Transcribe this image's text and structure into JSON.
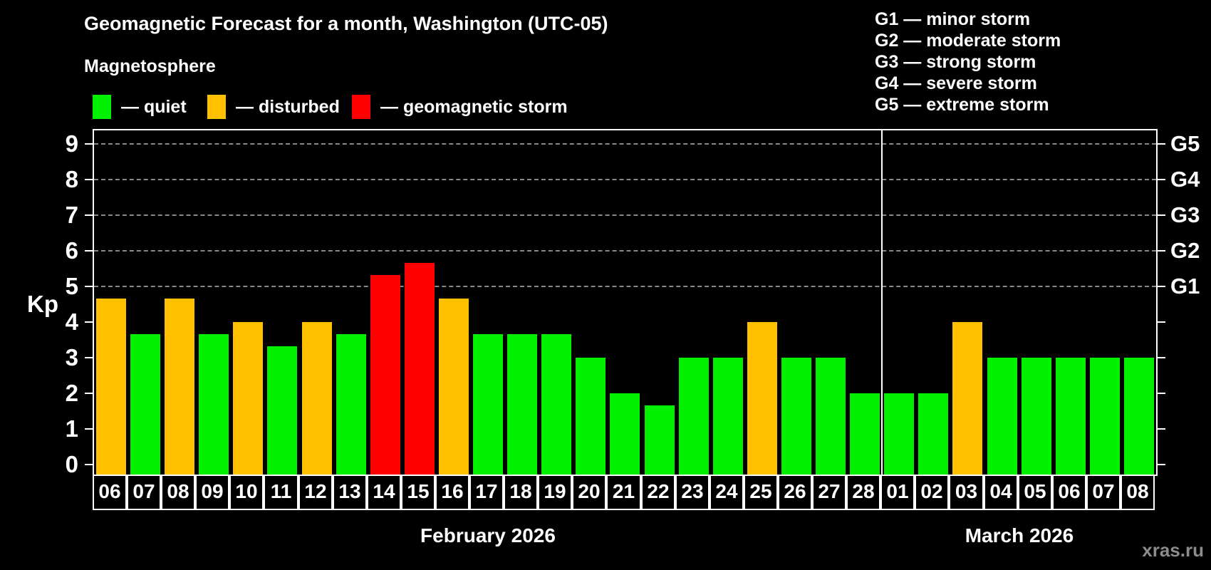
{
  "title": "Geomagnetic Forecast for a month, Washington (UTC-05)",
  "subtitle": "Magnetosphere",
  "watermark": "xras.ru",
  "colors": {
    "quiet": "#00f000",
    "disturbed": "#ffc000",
    "storm": "#ff0000",
    "grid": "#888888",
    "frame": "#ffffff",
    "text": "#ffffff",
    "watermark": "#8c8c8c",
    "background": "#000000"
  },
  "legend": {
    "items": [
      {
        "key": "quiet",
        "label": "— quiet"
      },
      {
        "key": "disturbed",
        "label": "— disturbed"
      },
      {
        "key": "storm",
        "label": "— geomagnetic storm"
      }
    ]
  },
  "storm_scale": [
    "G1 — minor storm",
    "G2 — moderate storm",
    "G3 — strong storm",
    "G4 — severe storm",
    "G5 — extreme storm"
  ],
  "y_axis": {
    "label": "Kp",
    "ticks": [
      0,
      1,
      2,
      3,
      4,
      5,
      6,
      7,
      8,
      9
    ]
  },
  "g_levels": [
    {
      "kp": 5,
      "code": "G1"
    },
    {
      "kp": 6,
      "code": "G2"
    },
    {
      "kp": 7,
      "code": "G3"
    },
    {
      "kp": 8,
      "code": "G4"
    },
    {
      "kp": 9,
      "code": "G5"
    }
  ],
  "chart_data": {
    "type": "bar",
    "title": "Geomagnetic Forecast for a month, Washington (UTC-05)",
    "xlabel": "",
    "ylabel": "Kp",
    "ylim": [
      0,
      9
    ],
    "grid": "dashed horizontal at Kp 5-9",
    "legend_position": "top-left",
    "months": [
      {
        "label": "February 2026",
        "points": [
          {
            "day": "06",
            "kp": 4.67,
            "status": "disturbed"
          },
          {
            "day": "07",
            "kp": 3.67,
            "status": "quiet"
          },
          {
            "day": "08",
            "kp": 4.67,
            "status": "disturbed"
          },
          {
            "day": "09",
            "kp": 3.67,
            "status": "quiet"
          },
          {
            "day": "10",
            "kp": 4.0,
            "status": "disturbed"
          },
          {
            "day": "11",
            "kp": 3.33,
            "status": "quiet"
          },
          {
            "day": "12",
            "kp": 4.0,
            "status": "disturbed"
          },
          {
            "day": "13",
            "kp": 3.67,
            "status": "quiet"
          },
          {
            "day": "14",
            "kp": 5.33,
            "status": "storm"
          },
          {
            "day": "15",
            "kp": 5.67,
            "status": "storm"
          },
          {
            "day": "16",
            "kp": 4.67,
            "status": "disturbed"
          },
          {
            "day": "17",
            "kp": 3.67,
            "status": "quiet"
          },
          {
            "day": "18",
            "kp": 3.67,
            "status": "quiet"
          },
          {
            "day": "19",
            "kp": 3.67,
            "status": "quiet"
          },
          {
            "day": "20",
            "kp": 3.0,
            "status": "quiet"
          },
          {
            "day": "21",
            "kp": 2.0,
            "status": "quiet"
          },
          {
            "day": "22",
            "kp": 1.67,
            "status": "quiet"
          },
          {
            "day": "23",
            "kp": 3.0,
            "status": "quiet"
          },
          {
            "day": "24",
            "kp": 3.0,
            "status": "quiet"
          },
          {
            "day": "25",
            "kp": 4.0,
            "status": "disturbed"
          },
          {
            "day": "26",
            "kp": 3.0,
            "status": "quiet"
          },
          {
            "day": "27",
            "kp": 3.0,
            "status": "quiet"
          },
          {
            "day": "28",
            "kp": 2.0,
            "status": "quiet"
          }
        ]
      },
      {
        "label": "March 2026",
        "points": [
          {
            "day": "01",
            "kp": 2.0,
            "status": "quiet"
          },
          {
            "day": "02",
            "kp": 2.0,
            "status": "quiet"
          },
          {
            "day": "03",
            "kp": 4.0,
            "status": "disturbed"
          },
          {
            "day": "04",
            "kp": 3.0,
            "status": "quiet"
          },
          {
            "day": "05",
            "kp": 3.0,
            "status": "quiet"
          },
          {
            "day": "06",
            "kp": 3.0,
            "status": "quiet"
          },
          {
            "day": "07",
            "kp": 3.0,
            "status": "quiet"
          },
          {
            "day": "08",
            "kp": 3.0,
            "status": "quiet"
          }
        ]
      }
    ]
  }
}
